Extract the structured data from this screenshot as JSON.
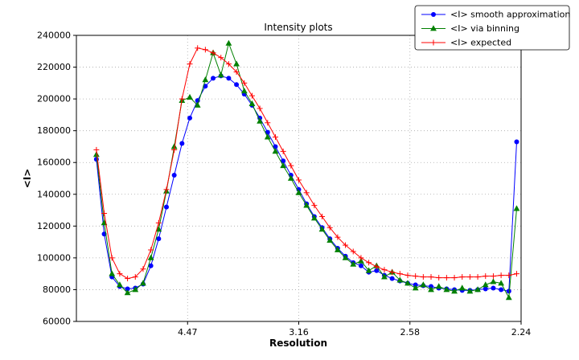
{
  "figure": {
    "title": "Intensity plots",
    "xlabel": "Resolution",
    "ylabel": "<I>"
  },
  "chart_data": {
    "type": "line",
    "title": "Intensity plots",
    "xlabel": "Resolution",
    "ylabel": "<I>",
    "xlim": [
      0,
      0.2
    ],
    "ylim": [
      60000,
      240000
    ],
    "grid": true,
    "legend_position": "upper right",
    "xticks": [
      {
        "value": 0.05,
        "label": "4.47"
      },
      {
        "value": 0.1,
        "label": "3.16"
      },
      {
        "value": 0.15,
        "label": "2.58"
      },
      {
        "value": 0.2,
        "label": "2.24"
      }
    ],
    "yticks": [
      60000,
      80000,
      100000,
      120000,
      140000,
      160000,
      180000,
      200000,
      220000,
      240000
    ],
    "x": [
      0.009,
      0.0125,
      0.016,
      0.0195,
      0.023,
      0.0265,
      0.03,
      0.0335,
      0.037,
      0.0405,
      0.044,
      0.0475,
      0.051,
      0.0545,
      0.058,
      0.0615,
      0.065,
      0.0685,
      0.072,
      0.0755,
      0.079,
      0.0825,
      0.086,
      0.0895,
      0.093,
      0.0965,
      0.1,
      0.1035,
      0.107,
      0.1105,
      0.114,
      0.1175,
      0.121,
      0.1245,
      0.128,
      0.1315,
      0.135,
      0.1385,
      0.142,
      0.1455,
      0.149,
      0.1525,
      0.156,
      0.1595,
      0.163,
      0.1665,
      0.17,
      0.1735,
      0.177,
      0.1805,
      0.184,
      0.1875,
      0.191,
      0.1945,
      0.198
    ],
    "series": [
      {
        "id": "smooth-approximation",
        "name": "<I> smooth approximation",
        "color": "#0000ff",
        "marker": "circle",
        "values": [
          162000,
          115000,
          88000,
          82000,
          80500,
          81000,
          83500,
          95000,
          112000,
          132000,
          152000,
          172000,
          188000,
          199000,
          208000,
          213000,
          214500,
          213000,
          209000,
          203000,
          196000,
          188000,
          179000,
          170000,
          161000,
          152000,
          143000,
          134000,
          126000,
          119000,
          112000,
          106000,
          101000,
          97000,
          95000,
          91000,
          92000,
          89000,
          87000,
          85500,
          84000,
          83000,
          82500,
          82000,
          81000,
          80500,
          80000,
          79500,
          79500,
          80000,
          80500,
          81000,
          80000,
          79000,
          173000
        ]
      },
      {
        "id": "via-binning",
        "name": "<I> via binning",
        "color": "#008000",
        "marker": "triangle",
        "values": [
          165000,
          122000,
          90000,
          83000,
          78000,
          80000,
          84000,
          100000,
          118000,
          142000,
          170000,
          199000,
          201000,
          196000,
          212000,
          229000,
          215000,
          235000,
          222000,
          205000,
          197000,
          186000,
          176000,
          167000,
          158000,
          150000,
          141000,
          133000,
          125000,
          118000,
          111000,
          105000,
          100000,
          96000,
          98000,
          92000,
          95000,
          88000,
          91000,
          86000,
          84000,
          81000,
          83000,
          80000,
          82000,
          80000,
          79000,
          81000,
          79000,
          80000,
          83000,
          85000,
          84000,
          75000,
          131000
        ]
      },
      {
        "id": "expected",
        "name": "<I> expected",
        "color": "#ff0000",
        "marker": "plus",
        "values": [
          168000,
          128000,
          100000,
          90000,
          87000,
          88000,
          93000,
          105000,
          122000,
          143000,
          168000,
          200000,
          222000,
          232000,
          231000,
          229000,
          226000,
          222000,
          217000,
          210000,
          202000,
          194000,
          185000,
          176000,
          167000,
          158000,
          149000,
          141000,
          133000,
          126000,
          119000,
          113000,
          108000,
          104000,
          100000,
          97000,
          94500,
          92500,
          91000,
          90000,
          89000,
          88500,
          88000,
          88000,
          87500,
          87500,
          87500,
          88000,
          88000,
          88000,
          88500,
          88500,
          89000,
          89000,
          90000
        ]
      }
    ]
  }
}
